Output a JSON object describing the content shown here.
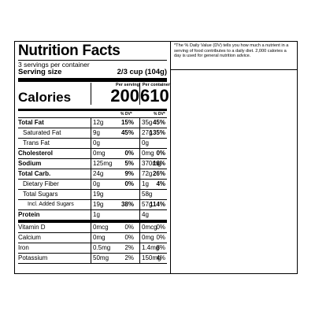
{
  "title": "Nutrition Facts",
  "servings_per_container": "3 servings per container",
  "serving_size_label": "Serving size",
  "serving_size_value": "2/3 cup (104g)",
  "footnote": "*The % Daily Value (DV) tells you how much a nutrient in a serving of food contributes to a daily diet. 2,000 calories a day is used for general nutrition advice.",
  "calories": {
    "label": "Calories",
    "per_serving_label": "Per serving",
    "per_serving_value": "200",
    "per_container_label": "Per container",
    "per_container_value": "610"
  },
  "dv_header": "% DV*",
  "nutrients": [
    {
      "name": "Total Fat",
      "s_amt": "12g",
      "s_dv": "15%",
      "c_amt": "35g",
      "c_dv": "45%"
    },
    {
      "name": "Saturated Fat",
      "s_amt": "9g",
      "s_dv": "45%",
      "c_amt": "27g",
      "c_dv": "135%"
    },
    {
      "name": "Trans Fat",
      "s_amt": "0g",
      "s_dv": "",
      "c_amt": "0g",
      "c_dv": ""
    },
    {
      "name": "Cholesterol",
      "s_amt": "0mg",
      "s_dv": "0%",
      "c_amt": "0mg",
      "c_dv": "0%"
    },
    {
      "name": "Sodium",
      "s_amt": "125mg",
      "s_dv": "5%",
      "c_amt": "370mg",
      "c_dv": "16%"
    },
    {
      "name": "Total Carb.",
      "s_amt": "24g",
      "s_dv": "9%",
      "c_amt": "72g",
      "c_dv": "26%"
    },
    {
      "name": "Dietary Fiber",
      "s_amt": "0g",
      "s_dv": "0%",
      "c_amt": "1g",
      "c_dv": "4%"
    },
    {
      "name": "Total Sugars",
      "s_amt": "19g",
      "s_dv": "",
      "c_amt": "58g",
      "c_dv": ""
    },
    {
      "name": "Incl. Added Sugars",
      "s_amt": "19g",
      "s_dv": "38%",
      "c_amt": "57g",
      "c_dv": "114%"
    },
    {
      "name": "Protein",
      "s_amt": "1g",
      "s_dv": "",
      "c_amt": "4g",
      "c_dv": ""
    }
  ],
  "vitamins": [
    {
      "name": "Vitamin D",
      "s_amt": "0mcg",
      "s_dv": "0%",
      "c_amt": "0mcg",
      "c_dv": "0%"
    },
    {
      "name": "Calcium",
      "s_amt": "0mg",
      "s_dv": "0%",
      "c_amt": "0mg",
      "c_dv": "0%"
    },
    {
      "name": "Iron",
      "s_amt": "0.5mg",
      "s_dv": "2%",
      "c_amt": "1.4mg",
      "c_dv": "8%"
    },
    {
      "name": "Potassium",
      "s_amt": "50mg",
      "s_dv": "2%",
      "c_amt": "150mg",
      "c_dv": "4%"
    }
  ]
}
